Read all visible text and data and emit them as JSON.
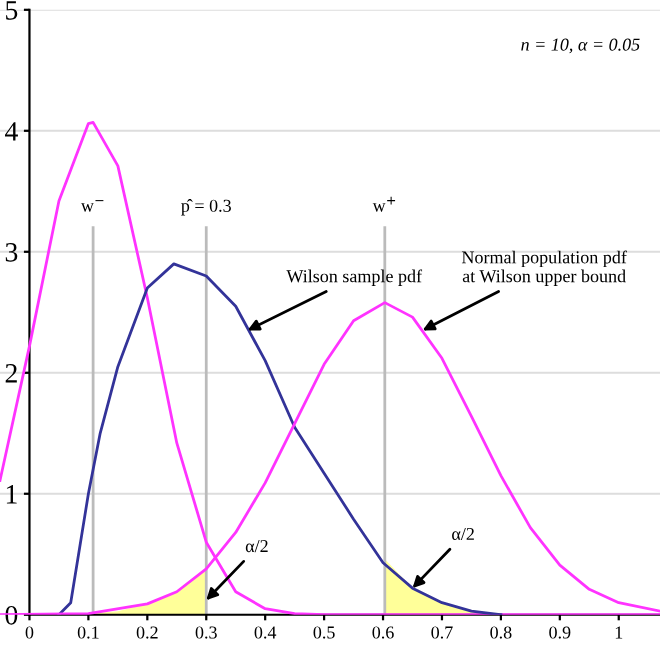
{
  "chart_data": {
    "type": "line",
    "xlim": [
      -0.05,
      1.07
    ],
    "ylim": [
      0,
      5
    ],
    "xticks": [
      0,
      0.1,
      0.2,
      0.3,
      0.4,
      0.5,
      0.6,
      0.7,
      0.8,
      0.9,
      1
    ],
    "yticks": [
      0,
      1,
      2,
      3,
      4,
      5
    ],
    "grid": "y",
    "marker": "none",
    "line_style": "solid",
    "series": [
      {
        "type": "area",
        "color": "#ffff99",
        "x": [
          0,
          0.05,
          0.1,
          0.15,
          0.2,
          0.25,
          0.3
        ],
        "values": [
          0,
          0,
          0.01,
          0.03,
          0.09,
          0.19,
          0.38
        ]
      },
      {
        "type": "area",
        "color": "#ffff99",
        "x": [
          0.603,
          0.65,
          0.7,
          0.75,
          0.8
        ],
        "values": [
          0.46,
          0.22,
          0.1,
          0.03,
          0
        ]
      },
      {
        "color": "#ff33ff",
        "x": [
          -0.05,
          0,
          0.05,
          0.1,
          0.108,
          0.15,
          0.2,
          0.25,
          0.3,
          0.35,
          0.4,
          0.45,
          0.5,
          0.6,
          0.7,
          0.8,
          0.9,
          1.0,
          1.07
        ],
        "values": [
          1.11,
          2.22,
          3.42,
          4.06,
          4.07,
          3.71,
          2.62,
          1.42,
          0.6,
          0.19,
          0.05,
          0.01,
          0,
          0,
          0,
          0,
          0,
          0,
          0
        ]
      },
      {
        "color": "#333399",
        "x": [
          0.05,
          0.07,
          0.1,
          0.12,
          0.15,
          0.2,
          0.245,
          0.3,
          0.35,
          0.4,
          0.45,
          0.5,
          0.55,
          0.6,
          0.65,
          0.7,
          0.75,
          0.8
        ],
        "values": [
          0,
          0.1,
          1.0,
          1.5,
          2.05,
          2.7,
          2.9,
          2.8,
          2.55,
          2.1,
          1.55,
          1.17,
          0.79,
          0.43,
          0.22,
          0.1,
          0.03,
          0
        ]
      },
      {
        "color": "#ff33ff",
        "x": [
          -0.05,
          0.1,
          0.2,
          0.25,
          0.3,
          0.35,
          0.4,
          0.45,
          0.5,
          0.55,
          0.603,
          0.65,
          0.7,
          0.75,
          0.8,
          0.85,
          0.9,
          0.95,
          1.0,
          1.07
        ],
        "values": [
          0,
          0.01,
          0.09,
          0.19,
          0.38,
          0.68,
          1.09,
          1.58,
          2.07,
          2.43,
          2.58,
          2.46,
          2.12,
          1.64,
          1.15,
          0.72,
          0.41,
          0.21,
          0.1,
          0.03
        ]
      }
    ],
    "ref_lines": [
      {
        "axis": "x",
        "value": 0.108,
        "label": "w$^{−}$",
        "color": "#bbbbbb"
      },
      {
        "axis": "x",
        "value": 0.3,
        "label": "p̂ = 0.3",
        "color": "#bbbbbb"
      },
      {
        "axis": "x",
        "value": 0.603,
        "label": "w$^{+}$",
        "color": "#bbbbbb"
      }
    ],
    "annotations": [
      "n = 10, α = 0.05",
      {
        "text": "Wilson sample pdf",
        "x": 0.37,
        "y": 2.35
      },
      {
        "text": "Normal population pdf\nat Wilson upper bound",
        "x": 0.667,
        "y": 2.35
      },
      {
        "text": "α/2",
        "x": 0.3,
        "y": 0.12
      },
      {
        "text": "α/2",
        "x": 0.65,
        "y": 0.22
      }
    ]
  }
}
